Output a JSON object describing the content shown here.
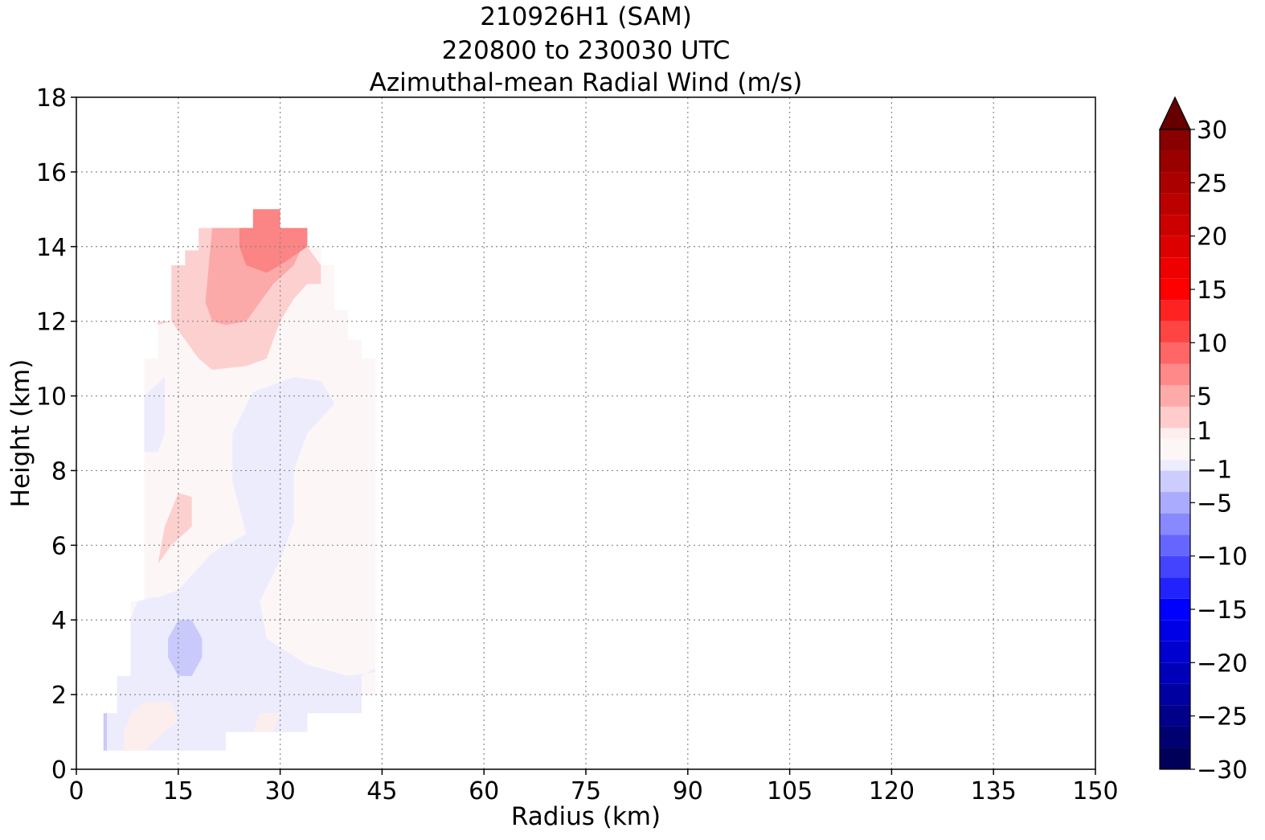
{
  "title_lines": [
    "210926H1 (SAM)",
    "220800 to 230030 UTC",
    "Azimuthal-mean Radial Wind (m/s)"
  ],
  "chart_data": {
    "type": "heatmap",
    "title": "210926H1 (SAM) 220800 to 230030 UTC Azimuthal-mean Radial Wind (m/s)",
    "xlabel": "Radius (km)",
    "ylabel": "Height (km)",
    "xlim": [
      0,
      150
    ],
    "ylim": [
      0,
      18
    ],
    "xticks": [
      0,
      15,
      30,
      45,
      60,
      75,
      90,
      105,
      120,
      135,
      150
    ],
    "yticks": [
      0,
      2,
      4,
      6,
      8,
      10,
      12,
      14,
      16,
      18
    ],
    "grid": true,
    "colorbar": {
      "label_ticks": [
        30,
        25,
        20,
        15,
        10,
        5,
        1,
        -1,
        -5,
        -10,
        -15,
        -20,
        -25,
        -30
      ],
      "levels": [
        -30,
        -28,
        -26,
        -24,
        -22,
        -20,
        -18,
        -16,
        -14,
        -12,
        -10,
        -8,
        -6,
        -4,
        -2,
        -1,
        1,
        2,
        4,
        6,
        8,
        10,
        12,
        14,
        16,
        18,
        20,
        22,
        24,
        26,
        28,
        30
      ],
      "extend": "max",
      "cmap": "seismic"
    },
    "contour_regions": [
      {
        "level_range": [
          -1,
          1
        ],
        "description": "background inflow/outflow near zero",
        "polygon": [
          [
            4,
            0.5
          ],
          [
            22,
            0.5
          ],
          [
            22,
            1
          ],
          [
            34,
            1
          ],
          [
            34,
            1.5
          ],
          [
            42,
            1.5
          ],
          [
            42,
            2
          ],
          [
            44,
            2
          ],
          [
            44,
            11
          ],
          [
            42,
            11
          ],
          [
            42,
            11.5
          ],
          [
            40,
            11.5
          ],
          [
            40,
            12.3
          ],
          [
            38,
            12.3
          ],
          [
            38,
            13.5
          ],
          [
            36,
            13.5
          ],
          [
            36,
            14
          ],
          [
            34,
            14
          ],
          [
            34,
            14.5
          ],
          [
            18,
            14.5
          ],
          [
            18,
            13.9
          ],
          [
            16,
            13.9
          ],
          [
            16,
            13.5
          ],
          [
            14,
            13.5
          ],
          [
            14,
            12
          ],
          [
            12,
            12
          ],
          [
            12,
            11
          ],
          [
            10,
            11
          ],
          [
            10,
            10
          ],
          [
            10,
            4.5
          ],
          [
            8,
            4.5
          ],
          [
            8,
            2.5
          ],
          [
            6,
            2.5
          ],
          [
            6,
            1.5
          ],
          [
            4,
            1.5
          ]
        ]
      },
      {
        "level_range": [
          -2,
          -1
        ],
        "polygon": [
          [
            4,
            0.5
          ],
          [
            22,
            0.5
          ],
          [
            22,
            1
          ],
          [
            34,
            1
          ],
          [
            34,
            1.5
          ],
          [
            42,
            1.5
          ],
          [
            42,
            2.5
          ],
          [
            44,
            2.7
          ],
          [
            44,
            2.6
          ],
          [
            40,
            2.5
          ],
          [
            34,
            2.8
          ],
          [
            28,
            3.5
          ],
          [
            27,
            4.5
          ],
          [
            30,
            5.6
          ],
          [
            32,
            6.6
          ],
          [
            32,
            8
          ],
          [
            34,
            9
          ],
          [
            38,
            9.8
          ],
          [
            36,
            10.4
          ],
          [
            32,
            10.5
          ],
          [
            26,
            10.1
          ],
          [
            23,
            9
          ],
          [
            23,
            7.7
          ],
          [
            25,
            6.3
          ],
          [
            20,
            5.8
          ],
          [
            15,
            4.8
          ],
          [
            12,
            4.6
          ],
          [
            11,
            4.6
          ],
          [
            9,
            4.5
          ],
          [
            8,
            4
          ],
          [
            8,
            2.5
          ],
          [
            6,
            2.5
          ],
          [
            6,
            1.5
          ],
          [
            4,
            1.5
          ]
        ]
      },
      {
        "level_range": [
          -2,
          -1
        ],
        "polygon": [
          [
            10,
            10
          ],
          [
            13,
            10.5
          ],
          [
            13,
            9
          ],
          [
            12,
            8.5
          ],
          [
            10,
            8.5
          ]
        ]
      },
      {
        "level_range": [
          -4,
          -2
        ],
        "polygon": [
          [
            13.5,
            3
          ],
          [
            15,
            2.5
          ],
          [
            17,
            2.5
          ],
          [
            18.5,
            3
          ],
          [
            18.5,
            3.5
          ],
          [
            17,
            4
          ],
          [
            15,
            4
          ],
          [
            13.5,
            3.5
          ]
        ]
      },
      {
        "level_range": [
          -4,
          -2
        ],
        "polygon": [
          [
            4,
            0.5
          ],
          [
            4.5,
            0.5
          ],
          [
            4.5,
            1.5
          ],
          [
            4,
            1.5
          ]
        ]
      },
      {
        "level_range": [
          1,
          2
        ],
        "polygon": [
          [
            7,
            0.5
          ],
          [
            10,
            0.5
          ],
          [
            13,
            1
          ],
          [
            15,
            1.3
          ],
          [
            14,
            1.8
          ],
          [
            10,
            1.8
          ],
          [
            8,
            1.5
          ],
          [
            7,
            1
          ]
        ]
      },
      {
        "level_range": [
          1,
          2
        ],
        "polygon": [
          [
            26,
            1
          ],
          [
            29,
            1
          ],
          [
            30,
            1.5
          ],
          [
            27,
            1.5
          ]
        ]
      },
      {
        "level_range": [
          2,
          4
        ],
        "polygon": [
          [
            12,
            5.5
          ],
          [
            14,
            6
          ],
          [
            17,
            6.5
          ],
          [
            17,
            7.3
          ],
          [
            15,
            7.4
          ],
          [
            13,
            6.5
          ]
        ]
      },
      {
        "level_range": [
          2,
          4
        ],
        "polygon": [
          [
            14,
            13.5
          ],
          [
            16,
            13.5
          ],
          [
            16,
            13.9
          ],
          [
            18,
            13.9
          ],
          [
            18,
            14.5
          ],
          [
            34,
            14.5
          ],
          [
            34,
            14
          ],
          [
            36,
            13.5
          ],
          [
            36,
            13
          ],
          [
            34,
            13
          ],
          [
            32,
            12.6
          ],
          [
            30,
            12
          ],
          [
            28,
            11
          ],
          [
            25,
            10.8
          ],
          [
            20,
            10.7
          ],
          [
            18,
            11
          ],
          [
            16,
            11.5
          ],
          [
            14,
            12
          ],
          [
            12,
            12
          ],
          [
            12,
            11.9
          ],
          [
            14,
            12
          ]
        ]
      },
      {
        "level_range": [
          4,
          6
        ],
        "polygon": [
          [
            19,
            12.5
          ],
          [
            20,
            12
          ],
          [
            22,
            11.9
          ],
          [
            25,
            12
          ],
          [
            27,
            12.5
          ],
          [
            29,
            13
          ],
          [
            32,
            13.5
          ],
          [
            33,
            13.9
          ],
          [
            30,
            14.3
          ],
          [
            26,
            14.5
          ],
          [
            20,
            14.5
          ],
          [
            19.5,
            13.5
          ]
        ]
      },
      {
        "level_range": [
          6,
          8
        ],
        "polygon": [
          [
            24,
            14
          ],
          [
            25,
            13.5
          ],
          [
            28,
            13.3
          ],
          [
            30,
            13.5
          ],
          [
            34,
            14
          ],
          [
            34,
            14.5
          ],
          [
            30,
            14.5
          ],
          [
            30,
            15
          ],
          [
            26,
            15
          ],
          [
            26,
            14.5
          ],
          [
            24,
            14.5
          ]
        ]
      }
    ]
  }
}
